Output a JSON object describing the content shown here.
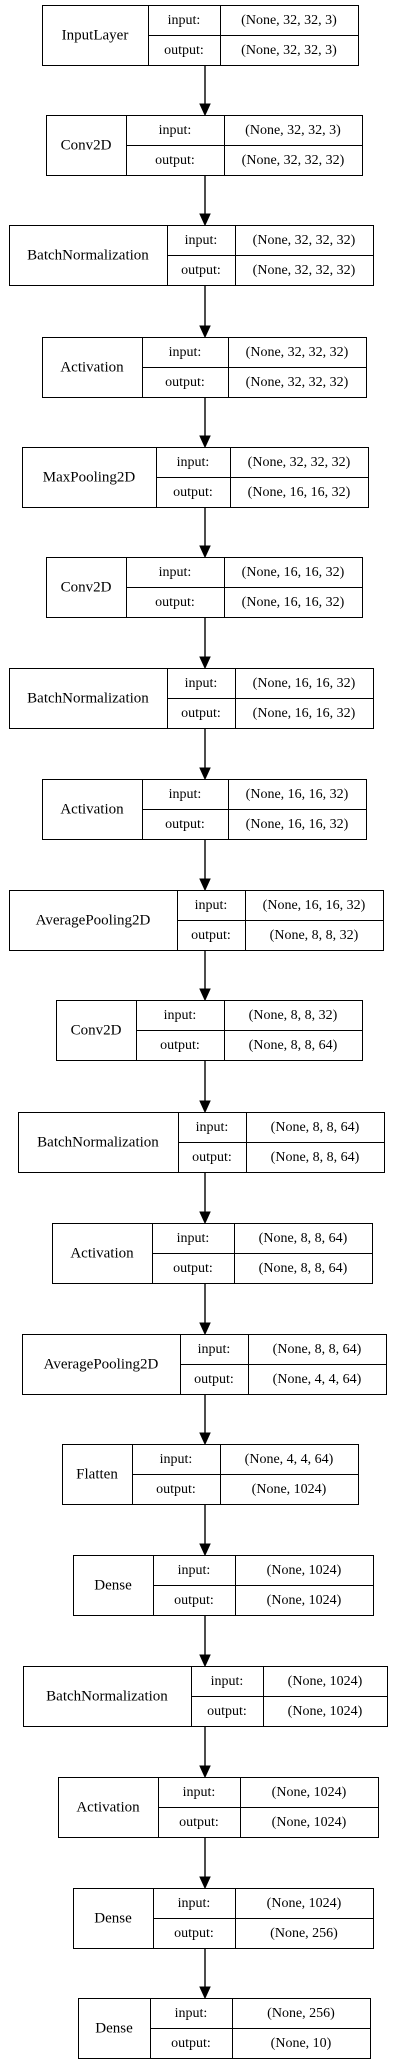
{
  "diagram": {
    "port_labels": {
      "input": "input:",
      "output": "output:"
    },
    "layers": [
      {
        "name": "InputLayer",
        "input": "(None, 32, 32, 3)",
        "output": "(None, 32, 32, 3)"
      },
      {
        "name": "Conv2D",
        "input": "(None, 32, 32, 3)",
        "output": "(None, 32, 32, 32)"
      },
      {
        "name": "BatchNormalization",
        "input": "(None, 32, 32, 32)",
        "output": "(None, 32, 32, 32)"
      },
      {
        "name": "Activation",
        "input": "(None, 32, 32, 32)",
        "output": "(None, 32, 32, 32)"
      },
      {
        "name": "MaxPooling2D",
        "input": "(None, 32, 32, 32)",
        "output": "(None, 16, 16, 32)"
      },
      {
        "name": "Conv2D",
        "input": "(None, 16, 16, 32)",
        "output": "(None, 16, 16, 32)"
      },
      {
        "name": "BatchNormalization",
        "input": "(None, 16, 16, 32)",
        "output": "(None, 16, 16, 32)"
      },
      {
        "name": "Activation",
        "input": "(None, 16, 16, 32)",
        "output": "(None, 16, 16, 32)"
      },
      {
        "name": "AveragePooling2D",
        "input": "(None, 16, 16, 32)",
        "output": "(None, 8, 8, 32)"
      },
      {
        "name": "Conv2D",
        "input": "(None, 8, 8, 32)",
        "output": "(None, 8, 8, 64)"
      },
      {
        "name": "BatchNormalization",
        "input": "(None, 8, 8, 64)",
        "output": "(None, 8, 8, 64)"
      },
      {
        "name": "Activation",
        "input": "(None, 8, 8, 64)",
        "output": "(None, 8, 8, 64)"
      },
      {
        "name": "AveragePooling2D",
        "input": "(None, 8, 8, 64)",
        "output": "(None, 4, 4, 64)"
      },
      {
        "name": "Flatten",
        "input": "(None, 4, 4, 64)",
        "output": "(None, 1024)"
      },
      {
        "name": "Dense",
        "input": "(None, 1024)",
        "output": "(None, 1024)"
      },
      {
        "name": "BatchNormalization",
        "input": "(None, 1024)",
        "output": "(None, 1024)"
      },
      {
        "name": "Activation",
        "input": "(None, 1024)",
        "output": "(None, 1024)"
      },
      {
        "name": "Dense",
        "input": "(None, 1024)",
        "output": "(None, 256)"
      },
      {
        "name": "Dense",
        "input": "(None, 256)",
        "output": "(None, 10)"
      }
    ]
  }
}
